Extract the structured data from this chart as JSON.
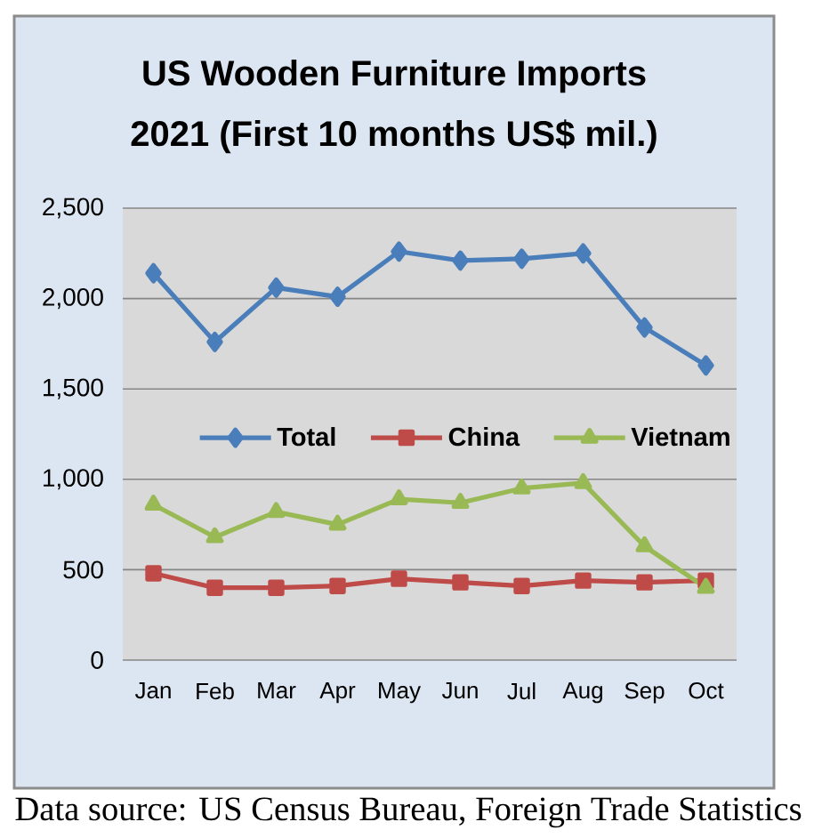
{
  "chart_data": {
    "type": "line",
    "title": "US Wooden Furniture Imports",
    "subtitle": "2021 (First 10 months US$ mil.)",
    "categories": [
      "Jan",
      "Feb",
      "Mar",
      "Apr",
      "May",
      "Jun",
      "Jul",
      "Aug",
      "Sep",
      "Oct"
    ],
    "series": [
      {
        "name": "Total",
        "color": "#4a7ebb",
        "marker": "diamond",
        "values": [
          2140,
          1760,
          2060,
          2010,
          2260,
          2210,
          2220,
          2250,
          1840,
          1630
        ]
      },
      {
        "name": "China",
        "color": "#be4b48",
        "marker": "square",
        "values": [
          480,
          400,
          400,
          410,
          450,
          430,
          410,
          440,
          430,
          440
        ]
      },
      {
        "name": "Vietnam",
        "color": "#98b954",
        "marker": "triangle",
        "values": [
          860,
          680,
          820,
          750,
          890,
          870,
          950,
          980,
          630,
          400
        ]
      }
    ],
    "ylim": [
      0,
      2500
    ],
    "yticks": [
      0,
      500,
      {
        "value": 1000,
        "label": "1,000"
      },
      {
        "value": 1500,
        "label": "1,500"
      },
      {
        "value": 2000,
        "label": "2,000"
      },
      {
        "value": 2500,
        "label": "2,500"
      }
    ],
    "grid": "y",
    "legend": "right",
    "annotations": [
      "Data source: US Census Bureau, Foreign Trade Statistics"
    ]
  }
}
